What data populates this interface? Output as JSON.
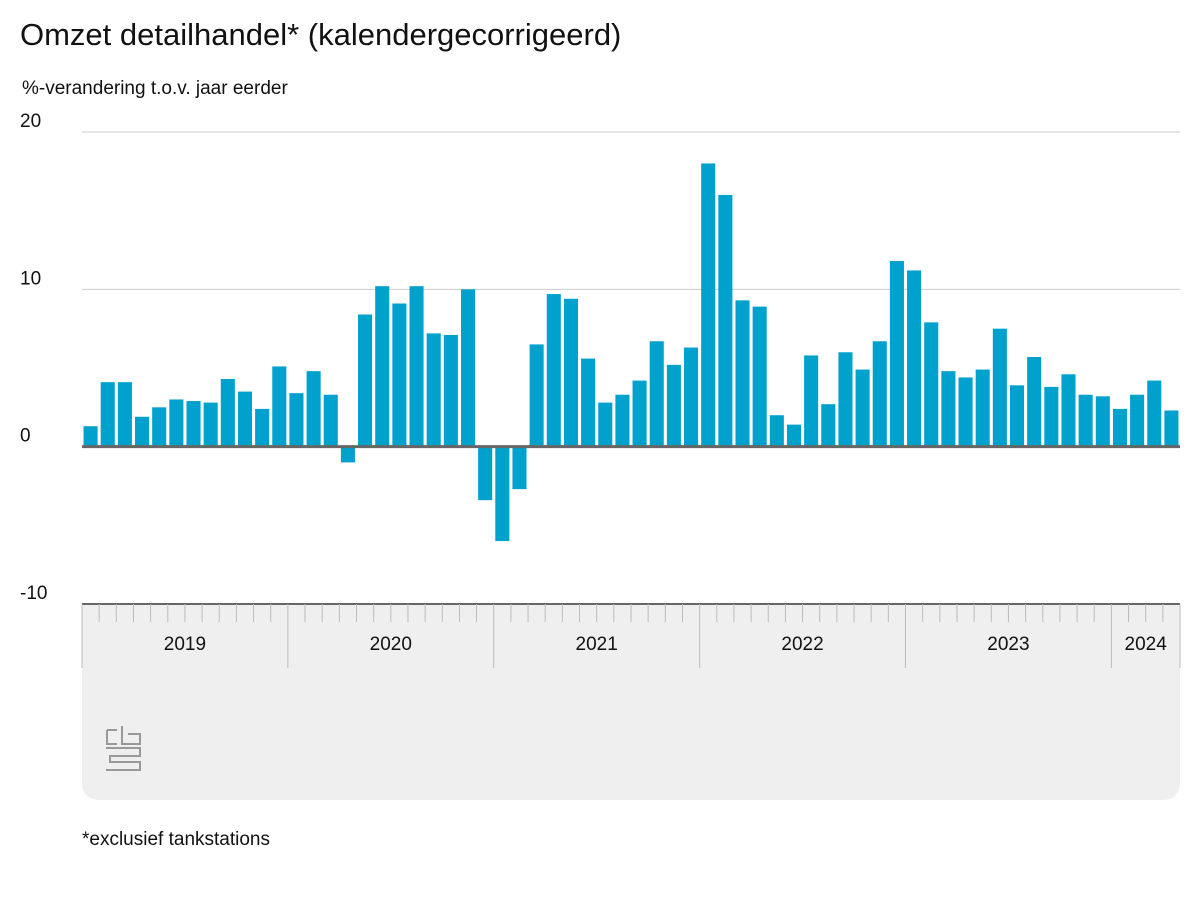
{
  "chart_data": {
    "type": "bar",
    "title": "Omzet detailhandel* (kalendergecorrigeerd)",
    "subtitle": "%-verandering t.o.v. jaar eerder",
    "footnote": "*exclusief tankstations",
    "categories": [
      "2019",
      "2019",
      "2019",
      "2019",
      "2019",
      "2019",
      "2019",
      "2019",
      "2019",
      "2019",
      "2019",
      "2019",
      "2020",
      "2020",
      "2020",
      "2020",
      "2020",
      "2020",
      "2020",
      "2020",
      "2020",
      "2020",
      "2020",
      "2020",
      "2021",
      "2021",
      "2021",
      "2021",
      "2021",
      "2021",
      "2021",
      "2021",
      "2021",
      "2021",
      "2021",
      "2021",
      "2022",
      "2022",
      "2022",
      "2022",
      "2022",
      "2022",
      "2022",
      "2022",
      "2022",
      "2022",
      "2022",
      "2022",
      "2023",
      "2023",
      "2023",
      "2023",
      "2023",
      "2023",
      "2023",
      "2023",
      "2023",
      "2023",
      "2023",
      "2023",
      "2024",
      "2024",
      "2024",
      "2024"
    ],
    "values": [
      1.3,
      4.1,
      4.1,
      1.9,
      2.5,
      3.0,
      2.9,
      2.8,
      4.3,
      3.5,
      2.4,
      5.1,
      3.4,
      4.8,
      3.3,
      -1.0,
      8.4,
      10.2,
      9.1,
      10.2,
      7.2,
      7.1,
      10.0,
      -3.4,
      -6.0,
      -2.7,
      6.5,
      9.7,
      9.4,
      5.6,
      2.8,
      3.3,
      4.2,
      6.7,
      5.2,
      6.3,
      18.0,
      16.0,
      9.3,
      8.9,
      2.0,
      1.4,
      5.8,
      2.7,
      6.0,
      4.9,
      6.7,
      11.8,
      11.2,
      7.9,
      4.8,
      4.4,
      4.9,
      7.5,
      3.9,
      5.7,
      3.8,
      4.6,
      3.3,
      3.2,
      2.4,
      3.3,
      4.2,
      2.3
    ],
    "color": "#00a1cd",
    "ylim": [
      -10,
      20
    ],
    "yticks": [
      -10,
      0,
      10,
      20
    ],
    "grid": true
  }
}
